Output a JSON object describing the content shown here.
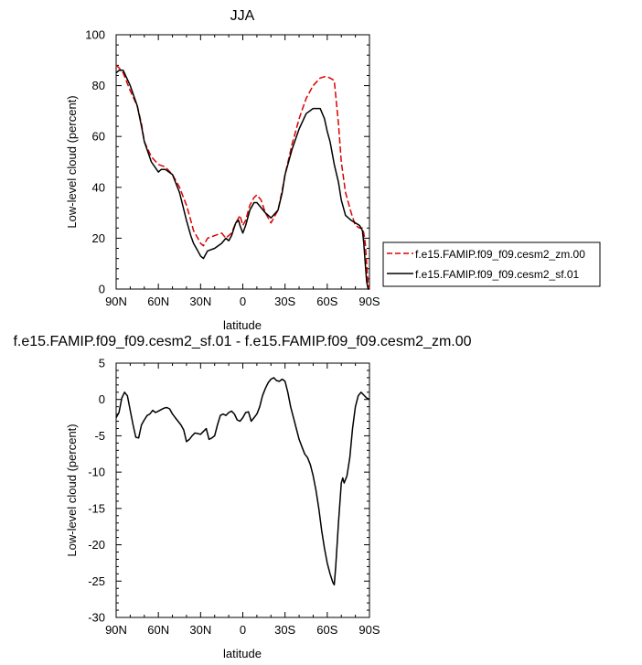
{
  "chart_data": [
    {
      "type": "line",
      "title": "JJA",
      "xlabel": "latitude",
      "ylabel": "Low-level cloud (percent)",
      "xlim": [
        90,
        -90
      ],
      "ylim": [
        0,
        100
      ],
      "x_ticks": [
        90,
        60,
        30,
        0,
        -30,
        -60,
        -90
      ],
      "x_tick_labels": [
        "90N",
        "60N",
        "30N",
        "0",
        "30S",
        "60S",
        "90S"
      ],
      "y_ticks": [
        0,
        20,
        40,
        60,
        80,
        100
      ],
      "y_tick_labels": [
        "0",
        "20",
        "40",
        "60",
        "80",
        "100"
      ],
      "legend_position": "right",
      "series": [
        {
          "name": "f.e15.FAMIP.f09_f09.cesm2_zm.00",
          "color": "#dd0000",
          "dash": "dashed",
          "x": [
            90,
            88,
            85,
            80,
            75,
            72,
            70,
            65,
            60,
            55,
            50,
            45,
            40,
            37,
            35,
            32,
            30,
            28,
            25,
            20,
            15,
            12,
            10,
            8,
            5,
            3,
            2,
            0,
            -2,
            -5,
            -8,
            -10,
            -13,
            -16,
            -20,
            -25,
            -28,
            -30,
            -35,
            -40,
            -45,
            -50,
            -55,
            -58,
            -60,
            -62,
            -65,
            -68,
            -70,
            -73,
            -77,
            -80,
            -83,
            -85,
            -86,
            -87,
            -88,
            -89,
            -90
          ],
          "y": [
            88,
            87,
            85,
            78,
            72,
            65,
            58,
            52,
            49,
            48,
            45,
            40,
            33,
            27,
            23,
            20,
            18,
            17,
            20,
            21,
            22,
            20,
            21,
            22,
            26,
            28,
            29,
            25,
            27,
            33,
            36,
            37,
            35,
            30,
            26,
            31,
            39,
            45,
            57,
            67,
            75,
            80,
            83,
            83.5,
            83.5,
            83,
            82,
            65,
            50,
            38,
            30,
            25,
            24,
            24,
            22,
            18,
            10,
            2,
            0
          ]
        },
        {
          "name": "f.e15.FAMIP.f09_f09.cesm2_sf.01",
          "color": "#000000",
          "dash": "solid",
          "x": [
            90,
            88,
            85,
            80,
            75,
            72,
            70,
            65,
            60,
            58,
            55,
            50,
            45,
            40,
            37,
            35,
            32,
            30,
            28,
            25,
            20,
            15,
            12,
            10,
            8,
            5,
            3,
            2,
            0,
            -2,
            -5,
            -8,
            -10,
            -13,
            -16,
            -20,
            -25,
            -28,
            -30,
            -35,
            -40,
            -45,
            -50,
            -55,
            -58,
            -60,
            -62,
            -65,
            -68,
            -70,
            -73,
            -77,
            -80,
            -83,
            -85,
            -86,
            -87,
            -88,
            -89,
            -90
          ],
          "y": [
            85,
            86,
            86,
            80,
            72,
            64,
            58,
            50,
            46,
            47,
            47,
            45,
            38,
            27,
            21,
            18,
            15,
            13,
            12,
            15,
            16,
            18,
            20,
            19,
            21,
            26,
            27,
            25,
            22,
            25,
            31,
            34,
            34,
            32,
            30,
            28,
            31,
            38,
            45,
            55,
            63,
            69,
            71,
            71,
            67,
            62,
            58,
            49,
            42,
            35,
            29,
            27,
            26,
            25,
            23,
            18,
            10,
            3,
            0,
            0
          ]
        }
      ]
    },
    {
      "type": "line",
      "title": "f.e15.FAMIP.f09_f09.cesm2_sf.01 - f.e15.FAMIP.f09_f09.cesm2_zm.00",
      "xlabel": "latitude",
      "ylabel": "Low-level cloud (percent)",
      "xlim": [
        90,
        -90
      ],
      "ylim": [
        -30,
        5
      ],
      "x_ticks": [
        90,
        60,
        30,
        0,
        -30,
        -60,
        -90
      ],
      "x_tick_labels": [
        "90N",
        "60N",
        "30N",
        "0",
        "30S",
        "60S",
        "90S"
      ],
      "y_ticks": [
        -30,
        -25,
        -20,
        -15,
        -10,
        -5,
        0,
        5
      ],
      "y_tick_labels": [
        "-30",
        "-25",
        "-20",
        "-15",
        "-10",
        "-5",
        "0",
        "5"
      ],
      "series": [
        {
          "name": "",
          "color": "#000000",
          "dash": "solid",
          "x": [
            90,
            88,
            86,
            84,
            82,
            80,
            78,
            76,
            74,
            72,
            70,
            68,
            66,
            64,
            62,
            60,
            58,
            56,
            54,
            52,
            50,
            48,
            46,
            44,
            42,
            40,
            38,
            36,
            34,
            32,
            30,
            28,
            26,
            24,
            22,
            20,
            18,
            16,
            14,
            12,
            10,
            8,
            6,
            4,
            2,
            0,
            -2,
            -4,
            -6,
            -8,
            -10,
            -12,
            -14,
            -16,
            -18,
            -20,
            -22,
            -24,
            -26,
            -28,
            -30,
            -32,
            -34,
            -36,
            -38,
            -40,
            -42,
            -44,
            -46,
            -48,
            -50,
            -52,
            -54,
            -56,
            -58,
            -60,
            -62,
            -64,
            -65,
            -66,
            -68,
            -70,
            -71,
            -72,
            -74,
            -76,
            -78,
            -80,
            -82,
            -84,
            -86,
            -88,
            -90
          ],
          "y": [
            -2.5,
            -1.8,
            0.2,
            1.0,
            0.5,
            -1.5,
            -3.5,
            -5.2,
            -5.3,
            -3.5,
            -2.8,
            -2.2,
            -2.0,
            -1.5,
            -1.8,
            -1.6,
            -1.4,
            -1.2,
            -1.1,
            -1.3,
            -2.0,
            -2.5,
            -3.0,
            -3.5,
            -4.2,
            -5.8,
            -5.5,
            -5.0,
            -4.6,
            -4.7,
            -4.8,
            -4.4,
            -4.0,
            -5.5,
            -5.3,
            -5.0,
            -3.5,
            -2.2,
            -2.0,
            -2.2,
            -1.8,
            -1.6,
            -2.0,
            -2.8,
            -3.0,
            -2.5,
            -1.8,
            -1.7,
            -3.0,
            -2.5,
            -2.0,
            -1.0,
            0.5,
            1.5,
            2.3,
            2.8,
            3.0,
            2.6,
            2.5,
            2.8,
            2.5,
            1.0,
            -1.0,
            -2.5,
            -4.0,
            -5.5,
            -6.5,
            -7.5,
            -8.0,
            -9.0,
            -10.5,
            -12.5,
            -15.0,
            -18.0,
            -20.5,
            -22.5,
            -24.0,
            -25.2,
            -25.5,
            -23.0,
            -17.0,
            -11.5,
            -10.8,
            -11.5,
            -10.5,
            -8.0,
            -4.0,
            -1.0,
            0.5,
            1.0,
            0.6,
            0.2,
            0.0
          ]
        }
      ]
    }
  ]
}
